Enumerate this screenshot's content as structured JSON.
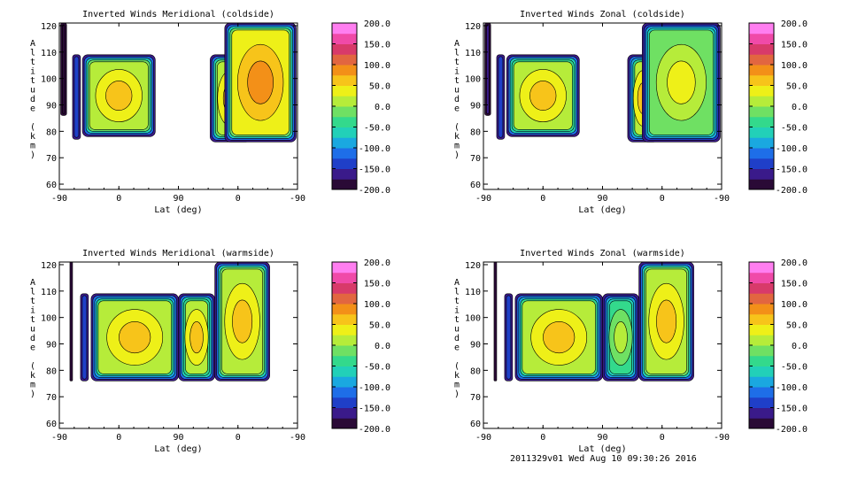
{
  "colors": {
    "colorbar_stops": [
      "#2a0a36",
      "#3a1a8a",
      "#1f3fc8",
      "#1e6ee8",
      "#1aa8e0",
      "#22d0b8",
      "#33d98c",
      "#6fe063",
      "#b6ec3a",
      "#eef018",
      "#f7c41a",
      "#f39018",
      "#e26640",
      "#d83a6a",
      "#f04aa8",
      "#ff7ef0"
    ],
    "contour_line": "#000000",
    "blank_region": "#ffffff"
  },
  "footer": {
    "stamp": "2011329v01 Wed Aug 10 09:30:26 2016"
  },
  "chart_data": [
    {
      "type": "heatmap",
      "title": "Inverted Winds Meridional (coldside)",
      "xlabel": "Lat (deg)",
      "ylabel": "Altitude (km)",
      "x_ticks": [
        "-90",
        "0",
        "90",
        "0",
        "-90"
      ],
      "y_ticks": [
        "60",
        "70",
        "80",
        "90",
        "100",
        "110",
        "120"
      ],
      "ylim": [
        58,
        121
      ],
      "colorbar": {
        "ticks": [
          "200.0",
          "150.0",
          "100.0",
          "50.0",
          "0.0",
          "-50.0",
          "-100.0",
          "-150.0",
          "-200.0"
        ],
        "range": [
          -200,
          200
        ]
      },
      "data_blocks": [
        {
          "lat_range": [
            -88,
            -79
          ],
          "alt_range": [
            86,
            121
          ],
          "value": -140
        },
        {
          "lat_range": [
            -70,
            -58
          ],
          "alt_range": [
            77,
            109
          ],
          "value": -60
        },
        {
          "lat_range": [
            -55,
            55
          ],
          "alt_range": [
            78,
            109
          ],
          "value": 20
        },
        {
          "lat_range": [
            138,
            200
          ],
          "alt_range": [
            76,
            109
          ],
          "value": 20
        },
        {
          "lat_range": [
            160,
            268
          ],
          "alt_range": [
            76,
            121
          ],
          "value": 30
        }
      ]
    },
    {
      "type": "heatmap",
      "title": "Inverted Winds Zonal (coldside)",
      "xlabel": "Lat (deg)",
      "ylabel": "Altitude (km)",
      "x_ticks": [
        "-90",
        "0",
        "90",
        "0",
        "-90"
      ],
      "y_ticks": [
        "60",
        "70",
        "80",
        "90",
        "100",
        "110",
        "120"
      ],
      "ylim": [
        58,
        121
      ],
      "colorbar": {
        "ticks": [
          "200.0",
          "150.0",
          "100.0",
          "50.0",
          "0.0",
          "-50.0",
          "-100.0",
          "-150.0",
          "-200.0"
        ],
        "range": [
          -200,
          200
        ]
      },
      "data_blocks": [
        {
          "lat_range": [
            -88,
            -79
          ],
          "alt_range": [
            86,
            121
          ],
          "value": -120
        },
        {
          "lat_range": [
            -70,
            -58
          ],
          "alt_range": [
            77,
            109
          ],
          "value": -40
        },
        {
          "lat_range": [
            -55,
            55
          ],
          "alt_range": [
            78,
            109
          ],
          "value": 10
        },
        {
          "lat_range": [
            128,
            175
          ],
          "alt_range": [
            76,
            109
          ],
          "value": 0
        },
        {
          "lat_range": [
            150,
            268
          ],
          "alt_range": [
            76,
            121
          ],
          "value": -20
        }
      ]
    },
    {
      "type": "heatmap",
      "title": "Inverted Winds Meridional (warmside)",
      "xlabel": "Lat (deg)",
      "ylabel": "Altitude (km)",
      "x_ticks": [
        "-90",
        "0",
        "90",
        "0",
        "-90"
      ],
      "y_ticks": [
        "60",
        "70",
        "80",
        "90",
        "100",
        "110",
        "120"
      ],
      "ylim": [
        58,
        121
      ],
      "colorbar": {
        "ticks": [
          "200.0",
          "150.0",
          "100.0",
          "50.0",
          "0.0",
          "-50.0",
          "-100.0",
          "-150.0",
          "-200.0"
        ],
        "range": [
          -200,
          200
        ]
      },
      "data_blocks": [
        {
          "lat_range": [
            -74,
            -70
          ],
          "alt_range": [
            76,
            121
          ],
          "value": -150
        },
        {
          "lat_range": [
            -58,
            -46
          ],
          "alt_range": [
            76,
            109
          ],
          "value": -60
        },
        {
          "lat_range": [
            -42,
            90
          ],
          "alt_range": [
            76,
            109
          ],
          "value": 0
        },
        {
          "lat_range": [
            90,
            145
          ],
          "alt_range": [
            76,
            109
          ],
          "value": 10
        },
        {
          "lat_range": [
            145,
            228
          ],
          "alt_range": [
            76,
            121
          ],
          "value": 20
        }
      ]
    },
    {
      "type": "heatmap",
      "title": "Inverted Winds Zonal (warmside)",
      "xlabel": "Lat (deg)",
      "ylabel": "Altitude (km)",
      "x_ticks": [
        "-90",
        "0",
        "90",
        "0",
        "-90"
      ],
      "y_ticks": [
        "60",
        "70",
        "80",
        "90",
        "100",
        "110",
        "120"
      ],
      "ylim": [
        58,
        121
      ],
      "colorbar": {
        "ticks": [
          "200.0",
          "150.0",
          "100.0",
          "50.0",
          "0.0",
          "-50.0",
          "-100.0",
          "-150.0",
          "-200.0"
        ],
        "range": [
          -200,
          200
        ]
      },
      "data_blocks": [
        {
          "lat_range": [
            -74,
            -70
          ],
          "alt_range": [
            76,
            121
          ],
          "value": -140
        },
        {
          "lat_range": [
            -58,
            -46
          ],
          "alt_range": [
            76,
            109
          ],
          "value": -60
        },
        {
          "lat_range": [
            -42,
            90
          ],
          "alt_range": [
            76,
            109
          ],
          "value": 0
        },
        {
          "lat_range": [
            90,
            145
          ],
          "alt_range": [
            76,
            109
          ],
          "value": -30
        },
        {
          "lat_range": [
            145,
            228
          ],
          "alt_range": [
            76,
            121
          ],
          "value": 20
        }
      ]
    }
  ]
}
